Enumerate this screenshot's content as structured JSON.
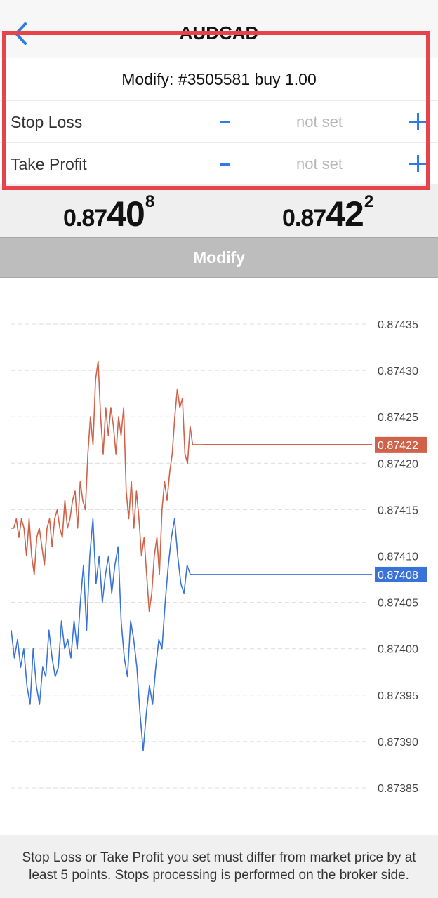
{
  "header": {
    "title": "AUDCAD"
  },
  "modify": {
    "title": "Modify: #3505581 buy 1.00",
    "stop_loss": {
      "label": "Stop Loss",
      "value": "not set"
    },
    "take_profit": {
      "label": "Take Profit",
      "value": "not set"
    }
  },
  "prices": {
    "bid": {
      "small": "0.87",
      "big": "40",
      "sup": "8"
    },
    "ask": {
      "small": "0.87",
      "big": "42",
      "sup": "2"
    }
  },
  "modify_button_label": "Modify",
  "chart_data": {
    "type": "line",
    "y_ticks": [
      "0.87435",
      "0.87430",
      "0.87425",
      "0.87420",
      "0.87415",
      "0.87410",
      "0.87405",
      "0.87400",
      "0.87395",
      "0.87390",
      "0.87385"
    ],
    "ylim": [
      0.87385,
      0.87435
    ],
    "series": [
      {
        "color": "#d0624a",
        "last_label": "0.87422",
        "last": 0.87422,
        "values": [
          0.87413,
          0.87413,
          0.87414,
          0.87412,
          0.87414,
          0.87413,
          0.8741,
          0.87414,
          0.8741,
          0.87408,
          0.87412,
          0.87413,
          0.87411,
          0.87409,
          0.87413,
          0.87414,
          0.87411,
          0.87414,
          0.87415,
          0.87413,
          0.87412,
          0.87416,
          0.87413,
          0.87414,
          0.87416,
          0.87417,
          0.87413,
          0.87418,
          0.87416,
          0.87415,
          0.87421,
          0.87425,
          0.87422,
          0.87429,
          0.87431,
          0.87425,
          0.87421,
          0.87426,
          0.87423,
          0.87426,
          0.87424,
          0.87421,
          0.87425,
          0.87423,
          0.87426,
          0.87417,
          0.87414,
          0.87418,
          0.87413,
          0.87417,
          0.87414,
          0.8741,
          0.87412,
          0.87408,
          0.87404,
          0.87406,
          0.8741,
          0.87412,
          0.87408,
          0.87415,
          0.87418,
          0.87416,
          0.87419,
          0.87421,
          0.87425,
          0.87428,
          0.87426,
          0.87427,
          0.87421,
          0.8742,
          0.87424,
          0.87422,
          0.87422,
          0.87422,
          0.87422,
          0.87422
        ]
      },
      {
        "color": "#3a73d8",
        "last_label": "0.87408",
        "last": 0.87408,
        "values": [
          0.87402,
          0.87399,
          0.87401,
          0.87398,
          0.874,
          0.87396,
          0.87394,
          0.874,
          0.87396,
          0.87394,
          0.87398,
          0.87397,
          0.87402,
          0.87399,
          0.87397,
          0.87398,
          0.87403,
          0.874,
          0.87401,
          0.87399,
          0.87403,
          0.874,
          0.87405,
          0.87409,
          0.87402,
          0.8741,
          0.87414,
          0.87407,
          0.8741,
          0.87405,
          0.87408,
          0.8741,
          0.87406,
          0.87409,
          0.87411,
          0.87403,
          0.87399,
          0.87397,
          0.87403,
          0.87401,
          0.87398,
          0.87393,
          0.87389,
          0.87393,
          0.87396,
          0.87394,
          0.87398,
          0.87401,
          0.874,
          0.87405,
          0.87409,
          0.87412,
          0.87414,
          0.8741,
          0.87407,
          0.87406,
          0.87409,
          0.87408,
          0.87408,
          0.87408,
          0.87408,
          0.87408
        ]
      }
    ]
  },
  "footer_note": "Stop Loss or Take Profit you set must differ from market price by at least 5 points. Stops processing is performed on the broker side."
}
